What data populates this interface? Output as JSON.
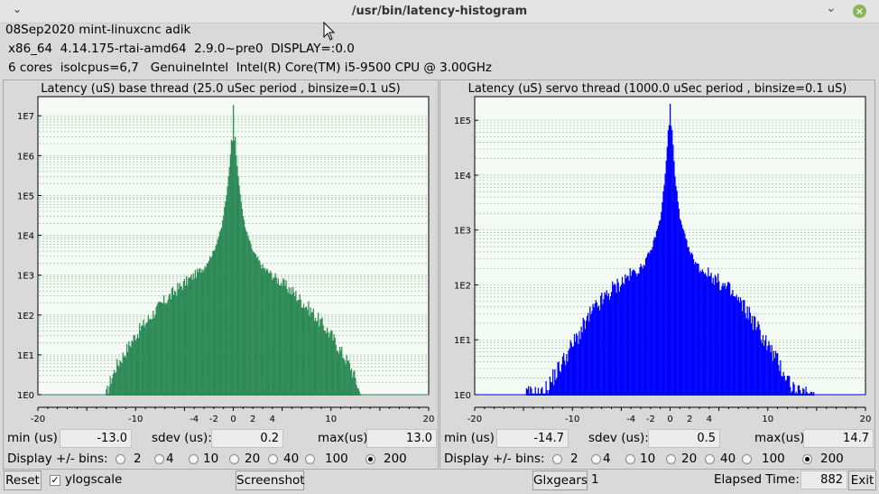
{
  "window": {
    "title": "/usr/bin/latency-histogram",
    "menu_glyph": "⌄",
    "minimize_glyph": "⌄",
    "close_glyph": "×"
  },
  "info": {
    "line1": "08Sep2020 mint-linuxcnc adik",
    "line2": "x86_64  4.14.175-rtai-amd64  2.9.0~pre0  DISPLAY=:0.0",
    "line3": "6 cores  isolcpus=6,7   GenuineIntel  Intel(R) Core(TM) i5-9500 CPU @ 3.00GHz"
  },
  "labels": {
    "min": "min (us)",
    "sdev": "sdev (us):",
    "max": "max(us)",
    "bins": "Display +/- bins:"
  },
  "bin_options": [
    "2",
    "4",
    "10",
    "20",
    "40",
    "100",
    "200"
  ],
  "selected_bins": "200",
  "base": {
    "min": "-13.0",
    "sdev": "0.2",
    "max": "13.0"
  },
  "servo": {
    "min": "-14.7",
    "sdev": "0.5",
    "max": "14.7"
  },
  "footer": {
    "reset": "Reset",
    "ylogscale": "ylogscale",
    "ylogscale_checked": true,
    "screenshot": "Screenshot",
    "glxgears": "Glxgears",
    "glxgears_count": "1",
    "elapsed_label": "Elapsed Time:",
    "elapsed_value": "882",
    "exit": "Exit"
  },
  "chart_data": [
    {
      "type": "bar",
      "title": "Latency (uS) base thread (25.0 uSec period , binsize=0.1 uS)",
      "xlim": [
        -20,
        20
      ],
      "x_ticks": [
        -20,
        -10,
        -4,
        -2,
        0,
        2,
        4,
        10,
        20
      ],
      "y_scale": "log",
      "y_ticks": [
        "1E0",
        "1E1",
        "1E2",
        "1E3",
        "1E4",
        "1E5",
        "1E6",
        "1E7"
      ],
      "ylim_log10": [
        0,
        7.3
      ],
      "color": "#2e8b57",
      "grid": true,
      "peak_log10": 7.3,
      "peak_neighbor_log10": 6.4,
      "profile": [
        [
          0,
          7.3
        ],
        [
          0.3,
          6.0
        ],
        [
          0.7,
          5.0
        ],
        [
          1.2,
          4.2
        ],
        [
          2,
          3.6
        ],
        [
          3,
          3.2
        ],
        [
          4,
          3.0
        ],
        [
          6,
          2.6
        ],
        [
          8,
          2.1
        ],
        [
          10,
          1.5
        ],
        [
          11,
          1.1
        ],
        [
          12,
          0.7
        ],
        [
          12.5,
          0.4
        ],
        [
          13,
          0.0
        ]
      ],
      "range": [
        -13,
        13
      ],
      "tail_to": 20
    },
    {
      "type": "bar",
      "title": "Latency (uS) servo thread (1000.0 uSec period , binsize=0.1 uS)",
      "xlim": [
        -20,
        20
      ],
      "x_ticks": [
        -20,
        -10,
        -4,
        -2,
        0,
        2,
        4,
        10,
        20
      ],
      "y_scale": "log",
      "y_ticks": [
        "1E0",
        "1E1",
        "1E2",
        "1E3",
        "1E4",
        "1E5"
      ],
      "ylim_log10": [
        0,
        5.3
      ],
      "color": "#0000ff",
      "grid": true,
      "peak_log10": 5.3,
      "peak_neighbor_log10": 4.9,
      "profile": [
        [
          0,
          5.3
        ],
        [
          0.2,
          4.8
        ],
        [
          0.5,
          4.0
        ],
        [
          1,
          3.2
        ],
        [
          2,
          2.6
        ],
        [
          3,
          2.3
        ],
        [
          4,
          2.2
        ],
        [
          6,
          1.9
        ],
        [
          8,
          1.5
        ],
        [
          9,
          1.2
        ],
        [
          10,
          0.9
        ],
        [
          11,
          0.6
        ],
        [
          12,
          0.3
        ],
        [
          13,
          0.0
        ]
      ],
      "range": [
        -14.7,
        14.7
      ],
      "tail_to": 20
    }
  ]
}
